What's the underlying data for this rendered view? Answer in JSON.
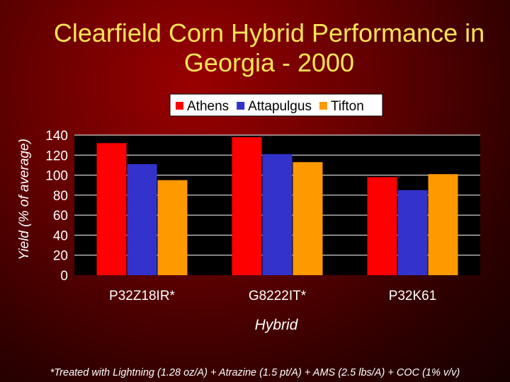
{
  "title": {
    "line1": "Clearfield Corn Hybrid Performance in",
    "line2": "Georgia - 2000"
  },
  "footnote": "*Treated with Lightning (1.28 oz/A) + Atrazine (1.5 pt/A) + AMS (2.5 lbs/A) + COC (1% v/v)",
  "chart_data": {
    "type": "bar",
    "title": "Clearfield Corn Hybrid Performance in Georgia - 2000",
    "xlabel": "Hybrid",
    "ylabel": "Yield (% of average)",
    "categories": [
      "P32Z18IR*",
      "G8222IT*",
      "P32K61"
    ],
    "series": [
      {
        "name": "Athens",
        "color": "#ff0000",
        "values": [
          132,
          138,
          98
        ]
      },
      {
        "name": "Attapulgus",
        "color": "#3333cc",
        "values": [
          111,
          121,
          85
        ]
      },
      {
        "name": "Tifton",
        "color": "#ff9900",
        "values": [
          95,
          113,
          101
        ]
      }
    ],
    "ylim": [
      0,
      140
    ],
    "yticks": [
      "0",
      "20",
      "40",
      "60",
      "80",
      "100",
      "120",
      "140"
    ],
    "grid": true,
    "legend_position": "top-right"
  }
}
